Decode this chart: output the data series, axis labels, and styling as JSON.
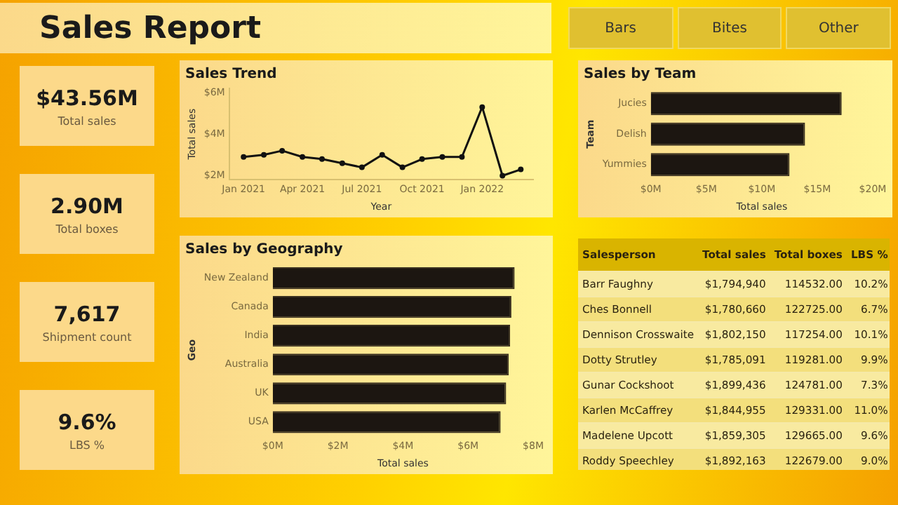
{
  "chart_data": [
    {
      "type": "other",
      "title": "Sales Report",
      "annotations": [
        "Bars",
        "Bites",
        "Other"
      ]
    },
    {
      "type": "other",
      "annotations": [
        "$43.56M",
        "Total sales",
        "2.90M",
        "Total boxes",
        "7,617",
        "Shipment count",
        "9.6%",
        "LBS %"
      ]
    },
    {
      "type": "line",
      "title": "Sales Trend",
      "xlabel": "Year",
      "ylabel": "Total sales",
      "x": [
        "2021-01",
        "2021-02",
        "2021-03",
        "2021-04",
        "2021-05",
        "2021-06",
        "2021-07",
        "2021-08",
        "2021-09",
        "2021-10",
        "2021-11",
        "2021-12",
        "2022-01",
        "2022-02",
        "2022-03"
      ],
      "values": [
        2.9,
        3.0,
        3.2,
        2.9,
        2.8,
        2.6,
        2.4,
        3.0,
        2.4,
        2.8,
        2.9,
        2.9,
        5.3,
        2.0,
        2.3
      ],
      "color": "#111111",
      "marker": "circle",
      "xticks": [
        {
          "value": "2021-01",
          "label": "Jan 2021"
        },
        {
          "value": "2021-04",
          "label": "Apr 2021"
        },
        {
          "value": "2021-07",
          "label": "Jul 2021"
        },
        {
          "value": "2021-10",
          "label": "Oct 2021"
        },
        {
          "value": "2022-01",
          "label": "Jan 2022"
        }
      ],
      "xlim": [
        "2020-12-10",
        "2022-03-20"
      ],
      "ylim": [
        1.8,
        6.2
      ],
      "yticks": [
        {
          "value": 2,
          "label": "$2M"
        },
        {
          "value": 4,
          "label": "$4M"
        },
        {
          "value": 6,
          "label": "$6M"
        }
      ]
    },
    {
      "type": "bar",
      "orientation": "horizontal",
      "title": "Sales by Team",
      "xlabel": "Total sales",
      "ylabel": "Team",
      "categories": [
        "Jucies",
        "Delish",
        "Yummies"
      ],
      "values": [
        17.2,
        13.9,
        12.5
      ],
      "color": "#1c1611",
      "xlim": [
        0,
        20
      ],
      "xticks": [
        {
          "value": 0,
          "label": "$0M"
        },
        {
          "value": 5,
          "label": "$5M"
        },
        {
          "value": 10,
          "label": "$10M"
        },
        {
          "value": 15,
          "label": "$15M"
        },
        {
          "value": 20,
          "label": "$20M"
        }
      ]
    },
    {
      "type": "bar",
      "orientation": "horizontal",
      "title": "Sales by Geography",
      "xlabel": "Total sales",
      "ylabel": "Geo",
      "categories": [
        "New Zealand",
        "Canada",
        "India",
        "Australia",
        "UK",
        "USA"
      ],
      "values": [
        7.43,
        7.33,
        7.29,
        7.25,
        7.17,
        7.0
      ],
      "color": "#1c1611",
      "xlim": [
        0,
        8
      ],
      "xticks": [
        {
          "value": 0,
          "label": "$0M"
        },
        {
          "value": 2,
          "label": "$2M"
        },
        {
          "value": 4,
          "label": "$4M"
        },
        {
          "value": 6,
          "label": "$6M"
        },
        {
          "value": 8,
          "label": "$8M"
        }
      ]
    },
    {
      "type": "other",
      "annotations": [
        "Salesperson",
        "Total sales",
        "Total boxes",
        "LBS %",
        "Barr Faughny",
        "$1,794,940",
        "114532.00",
        "10.2%",
        "Ches Bonnell",
        "$1,780,660",
        "122725.00",
        "6.7%",
        "Dennison Crosswaite",
        "$1,802,150",
        "117254.00",
        "10.1%",
        "Dotty Strutley",
        "$1,785,091",
        "119281.00",
        "9.9%",
        "Gunar Cockshoot",
        "$1,899,436",
        "124781.00",
        "7.3%",
        "Karlen McCaffrey",
        "$1,844,955",
        "129331.00",
        "11.0%",
        "Madelene Upcott",
        "$1,859,305",
        "129665.00",
        "9.6%",
        "Roddy Speechley",
        "$1,892,163",
        "122679.00",
        "9.0%"
      ]
    }
  ]
}
